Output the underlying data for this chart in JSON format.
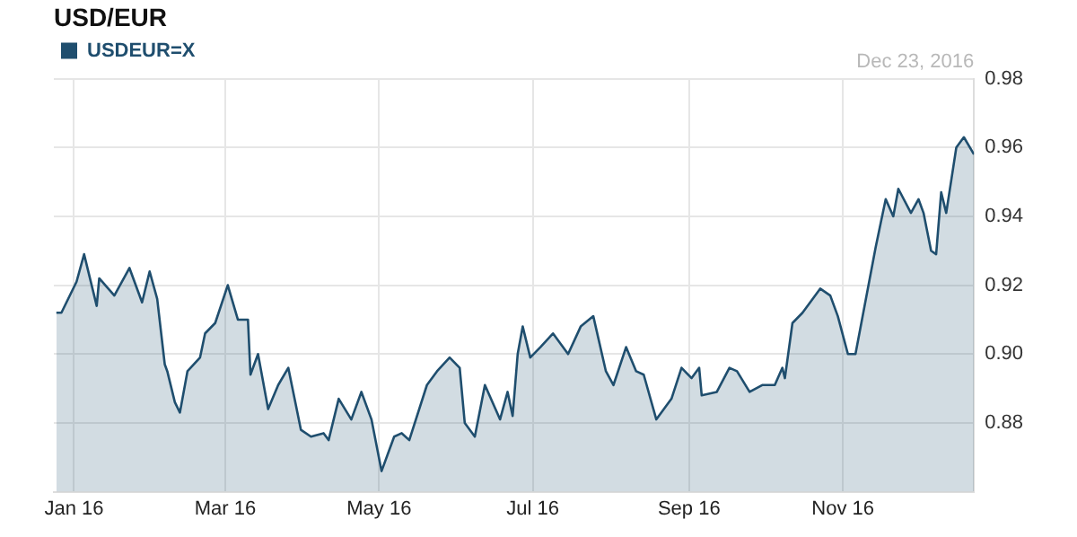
{
  "chart_data": {
    "type": "area",
    "title": "USD/EUR",
    "annotations": [
      "Dec 23, 2016"
    ],
    "legend": "top left",
    "grid": true,
    "marker": "none",
    "xlim": [
      "2015-12-24",
      "2016-12-23"
    ],
    "xticks": [
      {
        "value": "2016-01-01",
        "label": "Jan 16"
      },
      {
        "value": "2016-03-01",
        "label": "Mar 16"
      },
      {
        "value": "2016-05-01",
        "label": "May 16"
      },
      {
        "value": "2016-07-01",
        "label": "Jul 16"
      },
      {
        "value": "2016-09-01",
        "label": "Sep 16"
      },
      {
        "value": "2016-11-01",
        "label": "Nov 16"
      }
    ],
    "ylim": [
      0.86,
      0.98
    ],
    "yticks": [
      0.88,
      {
        "value": 0.9,
        "label": "0.90"
      },
      0.92,
      0.94,
      0.96,
      0.98
    ],
    "x": [
      "2015-12-25",
      "2015-12-27",
      "2016-01-02",
      "2016-01-05",
      "2016-01-10",
      "2016-01-11",
      "2016-01-17",
      "2016-01-23",
      "2016-01-28",
      "2016-01-31",
      "2016-02-03",
      "2016-02-06",
      "2016-02-07",
      "2016-02-10",
      "2016-02-12",
      "2016-02-15",
      "2016-02-20",
      "2016-02-22",
      "2016-02-26",
      "2016-03-02",
      "2016-03-06",
      "2016-03-10",
      "2016-03-11",
      "2016-03-14",
      "2016-03-18",
      "2016-03-22",
      "2016-03-26",
      "2016-03-31",
      "2016-04-04",
      "2016-04-09",
      "2016-04-11",
      "2016-04-15",
      "2016-04-20",
      "2016-04-24",
      "2016-04-28",
      "2016-05-02",
      "2016-05-07",
      "2016-05-10",
      "2016-05-13",
      "2016-05-20",
      "2016-05-24",
      "2016-05-29",
      "2016-06-02",
      "2016-06-04",
      "2016-06-08",
      "2016-06-12",
      "2016-06-18",
      "2016-06-21",
      "2016-06-23",
      "2016-06-25",
      "2016-06-27",
      "2016-06-30",
      "2016-07-04",
      "2016-07-09",
      "2016-07-15",
      "2016-07-20",
      "2016-07-25",
      "2016-07-30",
      "2016-08-02",
      "2016-08-07",
      "2016-08-11",
      "2016-08-14",
      "2016-08-19",
      "2016-08-25",
      "2016-08-29",
      "2016-09-02",
      "2016-09-05",
      "2016-09-06",
      "2016-09-12",
      "2016-09-17",
      "2016-09-20",
      "2016-09-25",
      "2016-09-30",
      "2016-10-05",
      "2016-10-08",
      "2016-10-09",
      "2016-10-12",
      "2016-10-16",
      "2016-10-23",
      "2016-10-27",
      "2016-10-30",
      "2016-11-03",
      "2016-11-06",
      "2016-11-14",
      "2016-11-16",
      "2016-11-18",
      "2016-11-21",
      "2016-11-23",
      "2016-11-28",
      "2016-12-01",
      "2016-12-03",
      "2016-12-06",
      "2016-12-08",
      "2016-12-10",
      "2016-12-12",
      "2016-12-16",
      "2016-12-19",
      "2016-12-23"
    ],
    "series": [
      {
        "name": "USDEUR=X",
        "color": "#1f4e6e",
        "values": [
          0.912,
          0.912,
          0.921,
          0.929,
          0.914,
          0.922,
          0.917,
          0.925,
          0.915,
          0.924,
          0.916,
          0.897,
          0.895,
          0.886,
          0.883,
          0.895,
          0.899,
          0.906,
          0.909,
          0.92,
          0.91,
          0.91,
          0.894,
          0.9,
          0.884,
          0.891,
          0.896,
          0.878,
          0.876,
          0.877,
          0.875,
          0.887,
          0.881,
          0.889,
          0.881,
          0.866,
          0.876,
          0.877,
          0.875,
          0.891,
          0.895,
          0.899,
          0.896,
          0.88,
          0.876,
          0.891,
          0.881,
          0.889,
          0.882,
          0.9,
          0.908,
          0.899,
          0.902,
          0.906,
          0.9,
          0.908,
          0.911,
          0.895,
          0.891,
          0.902,
          0.895,
          0.894,
          0.881,
          0.887,
          0.896,
          0.893,
          0.896,
          0.888,
          0.889,
          0.896,
          0.895,
          0.889,
          0.891,
          0.891,
          0.896,
          0.893,
          0.909,
          0.912,
          0.919,
          0.917,
          0.911,
          0.9,
          0.9,
          0.931,
          0.938,
          0.945,
          0.94,
          0.948,
          0.941,
          0.945,
          0.941,
          0.93,
          0.929,
          0.947,
          0.941,
          0.96,
          0.963,
          0.958
        ]
      }
    ]
  }
}
